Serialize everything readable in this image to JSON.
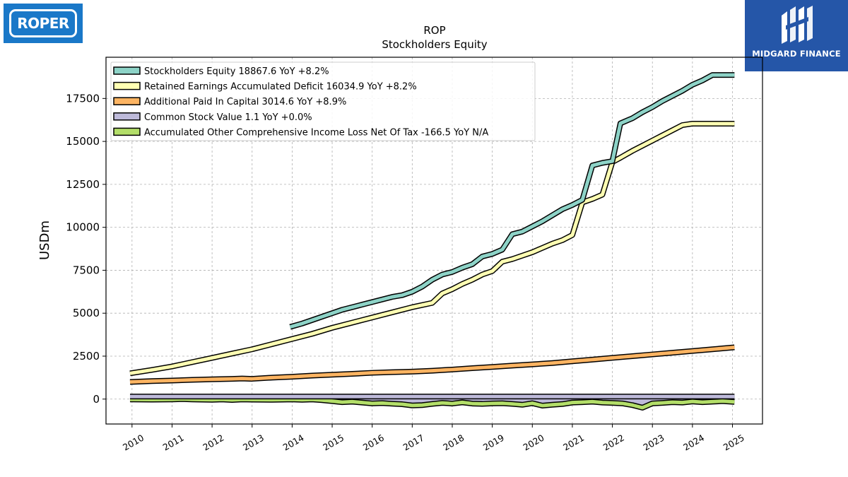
{
  "logos": {
    "left_text": "ROPER",
    "right_text": "MIDGARD FINANCE"
  },
  "chart_data": {
    "type": "line",
    "title": "ROP",
    "subtitle": "Stockholders  Equity",
    "xlabel": "",
    "ylabel": "USDm",
    "xlim": [
      2009.35,
      2025.75
    ],
    "ylim": [
      -1450,
      19900
    ],
    "yticks": [
      0,
      2500,
      5000,
      7500,
      10000,
      12500,
      15000,
      17500
    ],
    "xticks": [
      2010,
      2011,
      2012,
      2013,
      2014,
      2015,
      2016,
      2017,
      2018,
      2019,
      2020,
      2021,
      2022,
      2023,
      2024,
      2025
    ],
    "grid": true,
    "legend_position": "top-left",
    "series": [
      {
        "name": "Stockholders Equity  18867.6 YoY +8.2%",
        "color": "#8dd3c7",
        "x": [
          2013.95,
          2014.25,
          2014.5,
          2014.75,
          2015.0,
          2015.25,
          2015.5,
          2015.75,
          2016.0,
          2016.25,
          2016.5,
          2016.75,
          2017.0,
          2017.25,
          2017.5,
          2017.75,
          2018.0,
          2018.25,
          2018.5,
          2018.75,
          2019.0,
          2019.25,
          2019.5,
          2019.75,
          2020.0,
          2020.25,
          2020.5,
          2020.75,
          2021.0,
          2021.25,
          2021.5,
          2021.75,
          2022.0,
          2022.2,
          2022.5,
          2022.75,
          2023.0,
          2023.25,
          2023.5,
          2023.75,
          2024.0,
          2024.25,
          2024.5,
          2024.75,
          2025.05
        ],
        "y": [
          4200,
          4400,
          4600,
          4800,
          5000,
          5200,
          5350,
          5500,
          5650,
          5800,
          5950,
          6050,
          6250,
          6550,
          6950,
          7250,
          7400,
          7650,
          7850,
          8300,
          8450,
          8700,
          9600,
          9750,
          10050,
          10350,
          10700,
          11050,
          11300,
          11600,
          13600,
          13750,
          13850,
          16050,
          16350,
          16700,
          17000,
          17350,
          17650,
          17950,
          18300,
          18550,
          18867.6,
          18867.6,
          18867.6
        ]
      },
      {
        "name": "Retained Earnings Accumulated Deficit  16034.9 YoY +8.2%",
        "color": "#ffffb3",
        "x": [
          2009.95,
          2010.5,
          2011.0,
          2011.5,
          2012.0,
          2012.5,
          2013.0,
          2013.5,
          2014.0,
          2014.5,
          2015.0,
          2015.5,
          2016.0,
          2016.5,
          2017.0,
          2017.5,
          2017.75,
          2018.0,
          2018.25,
          2018.5,
          2018.75,
          2019.0,
          2019.25,
          2019.5,
          2019.75,
          2020.0,
          2020.5,
          2020.75,
          2021.0,
          2021.25,
          2021.5,
          2021.75,
          2022.0,
          2022.2,
          2022.5,
          2022.75,
          2023.0,
          2023.25,
          2023.5,
          2023.75,
          2024.0,
          2024.25,
          2024.5,
          2024.75,
          2025.05
        ],
        "y": [
          1500,
          1700,
          1900,
          2150,
          2400,
          2650,
          2900,
          3200,
          3500,
          3800,
          4150,
          4450,
          4750,
          5050,
          5350,
          5600,
          6150,
          6400,
          6700,
          6950,
          7250,
          7450,
          8000,
          8150,
          8350,
          8550,
          9050,
          9250,
          9550,
          11450,
          11650,
          11900,
          13800,
          14050,
          14450,
          14750,
          15050,
          15350,
          15650,
          15950,
          16034.9,
          16034.9,
          16034.9,
          16034.9,
          16034.9
        ]
      },
      {
        "name": "Additional Paid In Capital  3014.6 YoY +8.9%",
        "color": "#fdb462",
        "x": [
          2009.95,
          2010.5,
          2011.0,
          2011.5,
          2012.0,
          2012.5,
          2012.75,
          2013.0,
          2013.5,
          2014.0,
          2014.5,
          2015.0,
          2015.5,
          2016.0,
          2016.5,
          2017.0,
          2017.5,
          2018.0,
          2018.5,
          2019.0,
          2019.5,
          2020.0,
          2020.5,
          2021.0,
          2021.5,
          2022.0,
          2022.5,
          2023.0,
          2023.5,
          2024.0,
          2024.5,
          2025.05
        ],
        "y": [
          1000,
          1050,
          1080,
          1120,
          1150,
          1180,
          1200,
          1180,
          1250,
          1300,
          1370,
          1420,
          1470,
          1530,
          1570,
          1600,
          1650,
          1720,
          1800,
          1870,
          1950,
          2020,
          2100,
          2200,
          2300,
          2400,
          2500,
          2600,
          2700,
          2800,
          2900,
          3014.6
        ]
      },
      {
        "name": "Common Stock Value  1.1 YoY +0.0%",
        "color": "#bebada",
        "x": [
          2009.95,
          2025.05
        ],
        "y": [
          1.1,
          1.1
        ]
      },
      {
        "name": "Accumulated Other Comprehensive Income Loss Net Of Tax  -166.5 YoY N/A",
        "color": "#b3de69",
        "x": [
          2009.95,
          2010.5,
          2011.0,
          2011.25,
          2011.5,
          2012.0,
          2012.25,
          2012.5,
          2012.75,
          2013.0,
          2013.5,
          2014.0,
          2014.25,
          2014.5,
          2014.75,
          2015.0,
          2015.25,
          2015.5,
          2015.75,
          2016.0,
          2016.25,
          2016.5,
          2016.75,
          2017.0,
          2017.25,
          2017.5,
          2017.75,
          2018.0,
          2018.25,
          2018.5,
          2018.75,
          2019.0,
          2019.25,
          2019.5,
          2019.75,
          2020.0,
          2020.25,
          2020.5,
          2020.75,
          2021.0,
          2021.25,
          2021.5,
          2021.75,
          2022.0,
          2022.25,
          2022.5,
          2022.75,
          2023.0,
          2023.25,
          2023.5,
          2023.75,
          2024.0,
          2024.25,
          2024.5,
          2024.75,
          2025.05
        ],
        "y": [
          -20,
          -30,
          -20,
          0,
          -20,
          -40,
          -20,
          -50,
          -20,
          -30,
          -40,
          -20,
          -40,
          -20,
          -60,
          -120,
          -180,
          -150,
          -200,
          -250,
          -230,
          -270,
          -300,
          -370,
          -350,
          -280,
          -220,
          -260,
          -190,
          -260,
          -280,
          -250,
          -240,
          -280,
          -330,
          -240,
          -380,
          -330,
          -290,
          -200,
          -180,
          -150,
          -200,
          -220,
          -250,
          -350,
          -500,
          -250,
          -220,
          -180,
          -200,
          -140,
          -180,
          -150,
          -120,
          -166.5
        ]
      }
    ]
  }
}
